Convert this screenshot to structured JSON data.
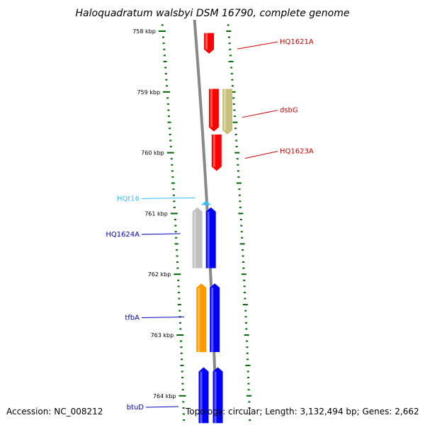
{
  "title": "Haloquadratum walsbyi DSM 16790, complete genome",
  "accession_text": "Accession: NC_008212",
  "summary_text": "Topology: circular; Length: 3,132,494 bp; Genes: 2,662",
  "scale": {
    "start_bp": 757800,
    "end_bp": 764450,
    "major_labels": [
      "758 kbp",
      "759 kbp",
      "760 kbp",
      "761 kbp",
      "762 kbp",
      "763 kbp",
      "764 kbp"
    ]
  },
  "features": [
    {
      "name": "HQ1621A",
      "strand": "+",
      "start_bp": 758030,
      "end_bp": 758370,
      "color": "#ff0000"
    },
    {
      "name": "dsbG",
      "strand": "+",
      "start_bp": 758950,
      "end_bp": 759700,
      "color": "#c8c07a"
    },
    {
      "name": "",
      "strand": "+",
      "start_bp": 758950,
      "end_bp": 759650,
      "color": "#ff0000"
    },
    {
      "name": "HQ1623A",
      "strand": "+",
      "start_bp": 759700,
      "end_bp": 760300,
      "color": "#ff0000"
    },
    {
      "name": "HQt16",
      "strand": "-",
      "start_bp": 760790,
      "end_bp": 760860,
      "color": "#33bbff"
    },
    {
      "name": "",
      "strand": "-",
      "start_bp": 760900,
      "end_bp": 761900,
      "color": "#c0c0c0"
    },
    {
      "name": "HQ1624A",
      "strand": "-",
      "start_bp": 760900,
      "end_bp": 761900,
      "color": "#0000ff"
    },
    {
      "name": "",
      "strand": "-",
      "start_bp": 762150,
      "end_bp": 763280,
      "color": "#ff9900"
    },
    {
      "name": "tfbA",
      "strand": "-",
      "start_bp": 762150,
      "end_bp": 763280,
      "color": "#0000ff"
    },
    {
      "name": "",
      "strand": "-",
      "start_bp": 763530,
      "end_bp": 764450,
      "color": "#0000ff"
    },
    {
      "name": "btuD",
      "strand": "-",
      "start_bp": 763530,
      "end_bp": 764450,
      "color": "#0000ff"
    }
  ],
  "label_colors": {
    "HQ1621A": "#cc0000",
    "dsbG": "#cc0000",
    "HQ1623A": "#cc0000",
    "HQt16": "#33bbff",
    "HQ1624A": "#0000bb",
    "tfbA": "#0000bb",
    "btuD": "#0000bb"
  },
  "tick_color": "#006600",
  "backbone_color": "#888888"
}
